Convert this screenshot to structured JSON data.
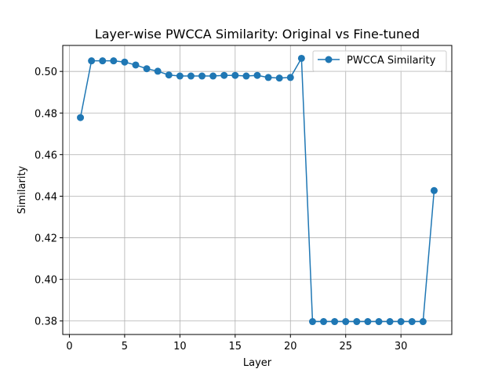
{
  "chart_data": {
    "type": "line",
    "title": "Layer-wise PWCCA Similarity: Original vs Fine-tuned",
    "xlabel": "Layer",
    "ylabel": "Similarity",
    "xlim": [
      -0.6,
      34.6
    ],
    "ylim": [
      0.3735,
      0.5125
    ],
    "xticks": [
      0,
      5,
      10,
      15,
      20,
      25,
      30
    ],
    "yticks": [
      0.38,
      0.4,
      0.42,
      0.44,
      0.46,
      0.48,
      0.5
    ],
    "grid": true,
    "legend_position": "top-right",
    "color": "#1f77b4",
    "series": [
      {
        "name": "PWCCA Similarity",
        "marker": "circle",
        "x": [
          1,
          2,
          3,
          4,
          5,
          6,
          7,
          8,
          9,
          10,
          11,
          12,
          13,
          14,
          15,
          16,
          17,
          18,
          19,
          20,
          21,
          22,
          23,
          24,
          25,
          26,
          27,
          28,
          29,
          30,
          31,
          32,
          33
        ],
        "values": [
          0.4778,
          0.5051,
          0.5051,
          0.5051,
          0.5045,
          0.5031,
          0.5013,
          0.5001,
          0.4983,
          0.4978,
          0.4978,
          0.4978,
          0.4978,
          0.4981,
          0.4981,
          0.4978,
          0.4981,
          0.4971,
          0.4968,
          0.4971,
          0.5063,
          0.3797,
          0.3797,
          0.3797,
          0.3797,
          0.3797,
          0.3797,
          0.3797,
          0.3797,
          0.3797,
          0.3797,
          0.3797,
          0.4427
        ]
      }
    ]
  }
}
